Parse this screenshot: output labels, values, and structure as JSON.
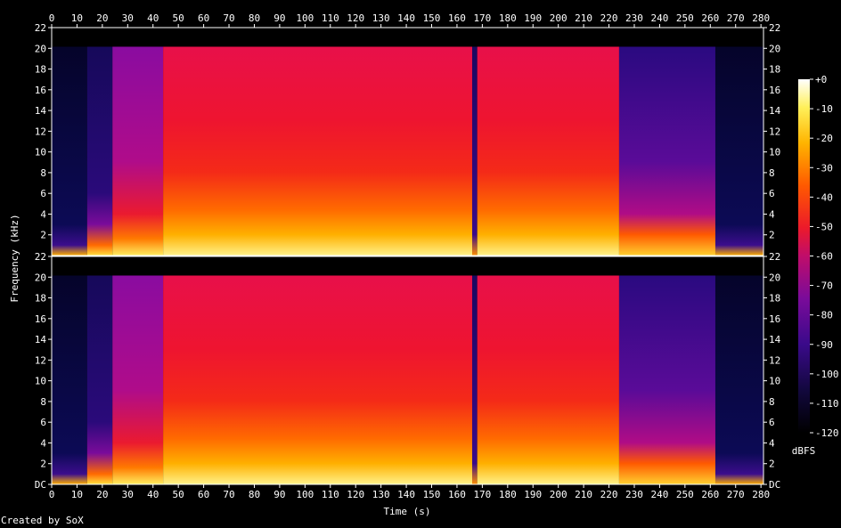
{
  "chart_data": {
    "type": "heatmap",
    "xlabel": "Time (s)",
    "ylabel": "Frequency (kHz)",
    "x_ticks": [
      0,
      10,
      20,
      30,
      40,
      50,
      60,
      70,
      80,
      90,
      100,
      110,
      120,
      130,
      140,
      150,
      160,
      170,
      180,
      190,
      200,
      210,
      220,
      230,
      240,
      250,
      260,
      270,
      280
    ],
    "xlim": [
      0,
      281
    ],
    "channels": [
      {
        "y_ticks": [
          "22",
          "20",
          "18",
          "16",
          "14",
          "12",
          "10",
          "8",
          "6",
          "4",
          "2"
        ]
      },
      {
        "y_ticks": [
          "22",
          "20",
          "18",
          "16",
          "14",
          "12",
          "10",
          "8",
          "6",
          "4",
          "2",
          "DC"
        ]
      }
    ],
    "ylim_khz": [
      0,
      22.05
    ],
    "colorbar": {
      "label": "dBFS",
      "ticks": [
        "+0",
        "-10",
        "-20",
        "-30",
        "-40",
        "-50",
        "-60",
        "-70",
        "-80",
        "-90",
        "-100",
        "-110",
        "-120"
      ],
      "range": [
        -120,
        0
      ]
    },
    "segments": [
      {
        "t0": 0,
        "t1": 14,
        "bandwidth_khz": 20.2,
        "level": "quiet"
      },
      {
        "t0": 14,
        "t1": 24,
        "bandwidth_khz": 20.2,
        "level": "fade-in"
      },
      {
        "t0": 24,
        "t1": 44,
        "bandwidth_khz": 20.2,
        "level": "medium"
      },
      {
        "t0": 44,
        "t1": 166,
        "bandwidth_khz": 20.2,
        "level": "loud"
      },
      {
        "t0": 166,
        "t1": 168,
        "bandwidth_khz": 20.2,
        "level": "gap"
      },
      {
        "t0": 168,
        "t1": 224,
        "bandwidth_khz": 20.2,
        "level": "loud"
      },
      {
        "t0": 224,
        "t1": 262,
        "bandwidth_khz": 20.2,
        "level": "fade-out"
      },
      {
        "t0": 262,
        "t1": 281,
        "bandwidth_khz": 20.2,
        "level": "quiet"
      }
    ]
  },
  "credit": "Created by SoX"
}
